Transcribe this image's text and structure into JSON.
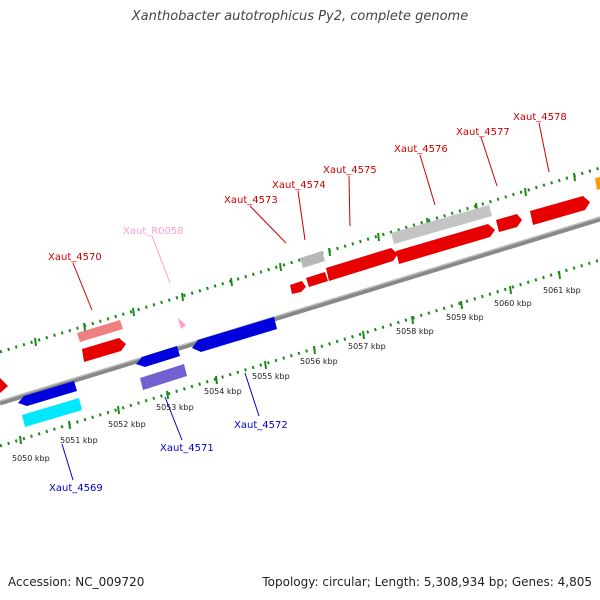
{
  "title": "Xanthobacter autotrophicus Py2, complete genome",
  "colors": {
    "forward_gene": "#ff0000",
    "forward_light": "#f08080",
    "reverse_gene": "#0000e0",
    "reverse_light": "#7060d0",
    "cyan_gene": "#00e8ff",
    "gray_gene": "#c0c0c0",
    "rna_label": "#ff9fd0",
    "orange_gene": "#ff9900",
    "backbone": "#888888",
    "tick": "#1a8a1a"
  },
  "ticks_kbp": [
    "5050 kbp",
    "5051 kbp",
    "5052 kbp",
    "5053 kbp",
    "5054 kbp",
    "5055 kbp",
    "5056 kbp",
    "5057 kbp",
    "5058 kbp",
    "5059 kbp",
    "5060 kbp",
    "5061 kbp"
  ],
  "genes_top": [
    "Xaut_4570",
    "Xaut_R0058",
    "Xaut_4573",
    "Xaut_4574",
    "Xaut_4575",
    "Xaut_4576",
    "Xaut_4577",
    "Xaut_4578"
  ],
  "genes_bottom": [
    "Xaut_4569",
    "Xaut_4571",
    "Xaut_4572"
  ],
  "footer": {
    "accession": "Accession: NC_009720",
    "topology": "Topology: circular; Length: 5,308,934 bp; Genes: 4,805"
  }
}
